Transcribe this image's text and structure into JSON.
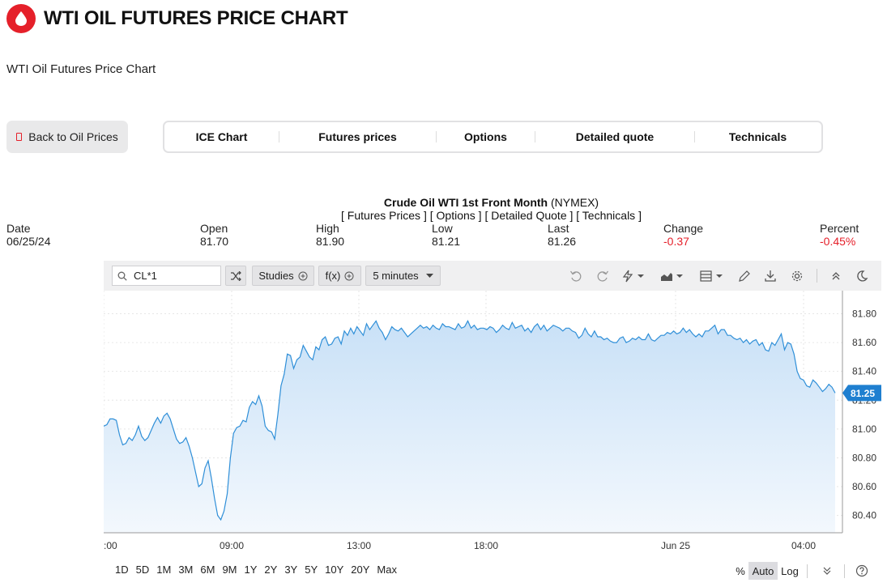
{
  "header": {
    "title": "WTI OIL FUTURES PRICE CHART",
    "subtitle": "WTI Oil Futures Price Chart"
  },
  "nav": {
    "back_label": "Back to Oil Prices",
    "tabs": [
      "ICE Chart",
      "Futures prices",
      "Options",
      "Detailed quote",
      "Technicals"
    ]
  },
  "quote": {
    "name": "Crude Oil WTI 1st Front Month",
    "exchange": "(NYMEX)",
    "links": [
      "[ Futures Prices ]",
      "[ Options ]",
      "[ Detailed Quote ]",
      "[ Technicals ]"
    ],
    "stats": [
      {
        "label": "Date",
        "value": "06/25/24"
      },
      {
        "label": "Open",
        "value": "81.70"
      },
      {
        "label": "High",
        "value": "81.90"
      },
      {
        "label": "Low",
        "value": "81.21"
      },
      {
        "label": "Last",
        "value": "81.26"
      },
      {
        "label": "Change",
        "value": "-0.37"
      },
      {
        "label": "Percent",
        "value": "-0.45%"
      }
    ]
  },
  "toolbar": {
    "symbol": "CL*1",
    "studies_label": "Studies",
    "fx_label": "f(x)",
    "interval_label": "5 minutes",
    "icons": [
      "undo-icon",
      "redo-icon",
      "lightning-icon",
      "chart-type-icon",
      "layout-icon",
      "pencil-icon",
      "download-icon",
      "gear-icon",
      "collapse-icon",
      "moon-icon"
    ]
  },
  "periods": [
    "1D",
    "5D",
    "1M",
    "3M",
    "6M",
    "9M",
    "1Y",
    "2Y",
    "3Y",
    "5Y",
    "10Y",
    "20Y",
    "Max"
  ],
  "scale_buttons": [
    "%",
    "Auto",
    "Log"
  ],
  "colors": {
    "accent": "#e5202a",
    "line": "#2f8fd8",
    "fill_top": "#c9e1f7",
    "fill_bottom": "#f3f8fd",
    "last_badge": "#1f7fd0"
  },
  "chart_data": {
    "type": "area",
    "x_tick_labels": [
      ":00",
      "09:00",
      "13:00",
      "18:00",
      "Jun 25",
      "04:00"
    ],
    "y_ticks": [
      "81.80",
      "81.60",
      "81.40",
      "81.20",
      "81.00",
      "80.80",
      "80.60",
      "80.40"
    ],
    "ylim": [
      80.28,
      81.96
    ],
    "last_value": "81.25",
    "grid": true,
    "y_values": [
      81.02,
      81.03,
      81.07,
      81.07,
      81.06,
      80.96,
      80.89,
      80.9,
      80.94,
      80.92,
      80.96,
      81.02,
      80.95,
      80.92,
      80.94,
      80.99,
      81.04,
      81.08,
      81.04,
      81.09,
      81.11,
      81.07,
      81.0,
      80.93,
      80.9,
      80.91,
      80.94,
      80.88,
      80.8,
      80.7,
      80.6,
      80.62,
      80.73,
      80.78,
      80.66,
      80.52,
      80.4,
      80.37,
      80.43,
      80.55,
      80.8,
      80.97,
      81.01,
      81.02,
      81.06,
      81.05,
      81.15,
      81.19,
      81.17,
      81.23,
      81.16,
      81.02,
      80.99,
      80.98,
      80.93,
      81.1,
      81.3,
      81.38,
      81.52,
      81.51,
      81.42,
      81.48,
      81.5,
      81.58,
      81.54,
      81.5,
      81.48,
      81.57,
      81.55,
      81.62,
      81.64,
      81.58,
      81.59,
      81.63,
      81.64,
      81.59,
      81.68,
      81.65,
      81.7,
      81.66,
      81.71,
      81.68,
      81.65,
      81.73,
      81.69,
      81.72,
      81.75,
      81.7,
      81.67,
      81.62,
      81.66,
      81.71,
      81.69,
      81.68,
      81.7,
      81.67,
      81.64,
      81.66,
      81.68,
      81.7,
      81.72,
      81.7,
      81.71,
      81.69,
      81.72,
      81.7,
      81.69,
      81.73,
      81.71,
      81.71,
      81.7,
      81.69,
      81.73,
      81.7,
      81.71,
      81.75,
      81.7,
      81.72,
      81.69,
      81.7,
      81.7,
      81.69,
      81.71,
      81.7,
      81.67,
      81.69,
      81.72,
      81.7,
      81.69,
      81.74,
      81.7,
      81.71,
      81.72,
      81.68,
      81.7,
      81.67,
      81.71,
      81.73,
      81.69,
      81.72,
      81.68,
      81.7,
      81.72,
      81.71,
      81.7,
      81.68,
      81.7,
      81.7,
      81.68,
      81.67,
      81.63,
      81.65,
      81.7,
      81.66,
      81.64,
      81.68,
      81.64,
      81.64,
      81.62,
      81.63,
      81.61,
      81.6,
      81.6,
      81.63,
      81.64,
      81.6,
      81.61,
      81.63,
      81.62,
      81.64,
      81.62,
      81.62,
      81.66,
      81.62,
      81.61,
      81.63,
      81.65,
      81.65,
      81.67,
      81.66,
      81.68,
      81.66,
      81.67,
      81.7,
      81.67,
      81.69,
      81.66,
      81.64,
      81.66,
      81.64,
      81.68,
      81.68,
      81.7,
      81.72,
      81.66,
      81.69,
      81.69,
      81.65,
      81.65,
      81.63,
      81.62,
      81.63,
      81.6,
      81.62,
      81.59,
      81.61,
      81.62,
      81.58,
      81.6,
      81.55,
      81.54,
      81.6,
      81.58,
      81.62,
      81.66,
      81.55,
      81.6,
      81.59,
      81.52,
      81.4,
      81.35,
      81.34,
      81.3,
      81.29,
      81.34,
      81.32,
      81.29,
      81.26,
      81.28,
      81.31,
      81.29,
      81.25
    ]
  }
}
